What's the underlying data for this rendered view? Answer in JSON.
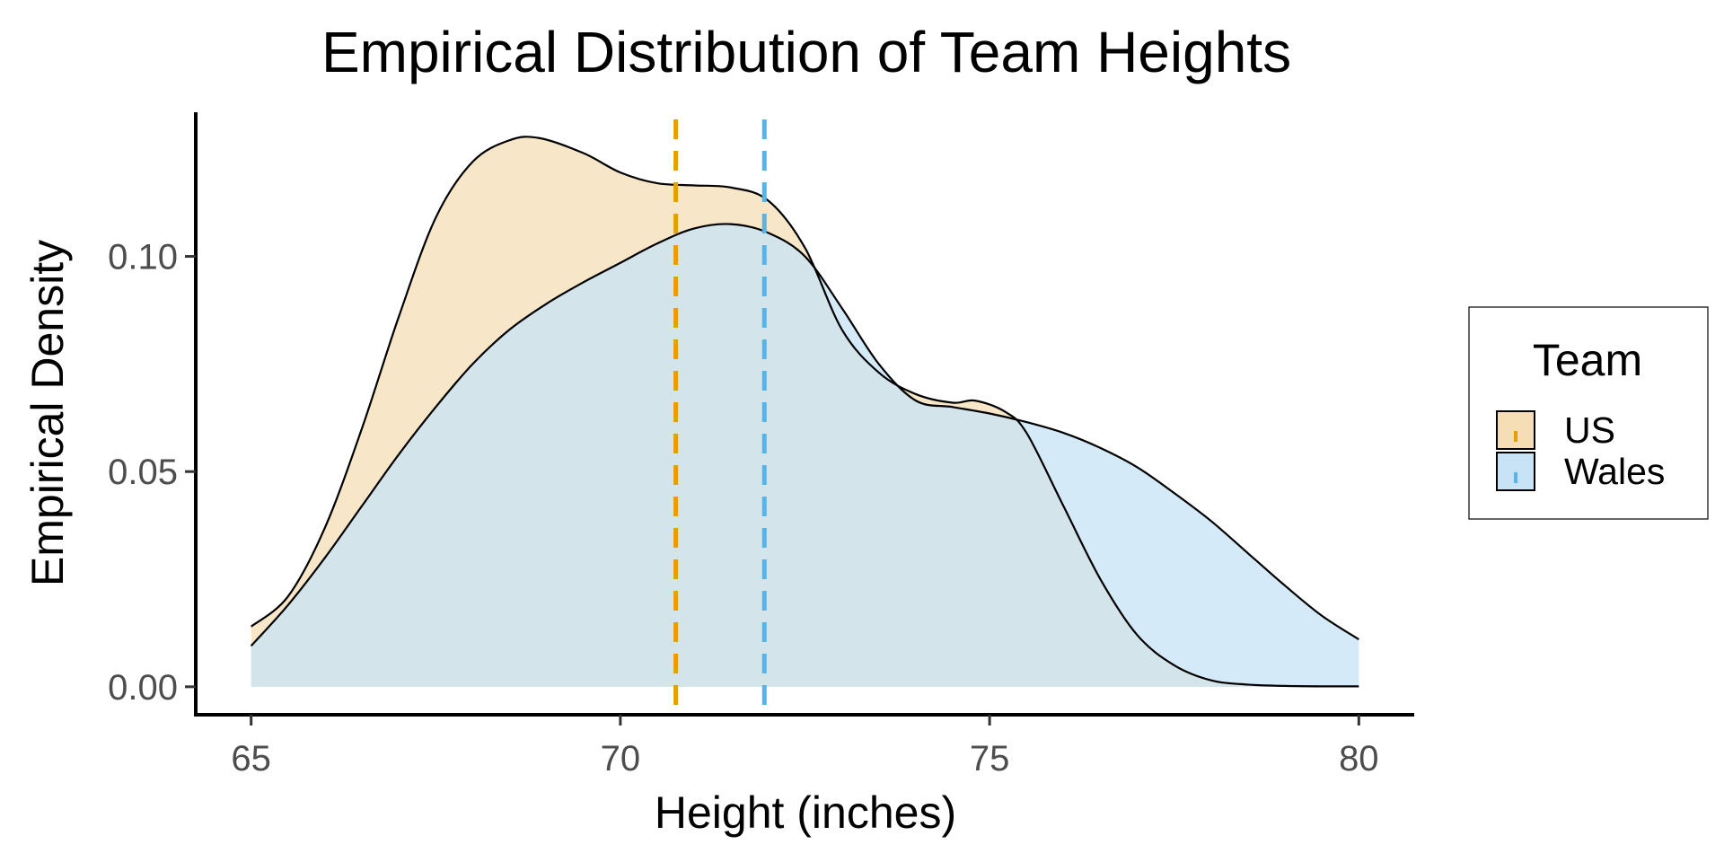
{
  "chart_data": {
    "type": "area",
    "title": "Empirical Distribution of Team Heights",
    "xlabel": "Height (inches)",
    "ylabel": "Empirical Density",
    "xlim": [
      64.25,
      80.75
    ],
    "ylim": [
      -0.0065,
      0.1335
    ],
    "x_ticks": [
      65,
      70,
      75,
      80
    ],
    "x_tick_labels": [
      "65",
      "70",
      "75",
      "80"
    ],
    "y_ticks": [
      0.0,
      0.05,
      0.1
    ],
    "y_tick_labels": [
      "0.00",
      "0.05",
      "0.10"
    ],
    "grid": false,
    "legend": {
      "title": "Team",
      "position": "right"
    },
    "series": [
      {
        "name": "US",
        "color": "#E69F00",
        "fill": "#F5DDB5",
        "mean": 70.75,
        "x": [
          65,
          65.5,
          66,
          66.5,
          67,
          67.5,
          68,
          68.5,
          68.9,
          69.5,
          70,
          70.5,
          71,
          71.5,
          72,
          72.5,
          73,
          73.5,
          74,
          74.5,
          74.8,
          75.2,
          75.5,
          76,
          76.5,
          77,
          77.5,
          78,
          78.5,
          79,
          79.5,
          80
        ],
        "y": [
          0.014,
          0.021,
          0.037,
          0.06,
          0.086,
          0.109,
          0.122,
          0.127,
          0.1275,
          0.124,
          0.1195,
          0.117,
          0.1165,
          0.116,
          0.113,
          0.102,
          0.083,
          0.073,
          0.068,
          0.066,
          0.0665,
          0.064,
          0.059,
          0.042,
          0.025,
          0.012,
          0.005,
          0.0015,
          0.0005,
          0.0002,
          0.0001,
          0.0001
        ]
      },
      {
        "name": "Wales",
        "color": "#56B4E9",
        "fill": "#C7E3F5",
        "mean": 71.95,
        "x": [
          65,
          65.5,
          66,
          66.5,
          67,
          67.5,
          68,
          68.5,
          69,
          69.5,
          70,
          70.5,
          71,
          71.5,
          72,
          72.5,
          73,
          73.5,
          74,
          74.5,
          75,
          75.5,
          76,
          76.5,
          77,
          77.5,
          78,
          78.5,
          79,
          79.5,
          80
        ],
        "y": [
          0.0095,
          0.019,
          0.03,
          0.042,
          0.054,
          0.065,
          0.075,
          0.083,
          0.089,
          0.094,
          0.0985,
          0.103,
          0.1065,
          0.1075,
          0.1055,
          0.1,
          0.088,
          0.075,
          0.0665,
          0.065,
          0.0635,
          0.0615,
          0.059,
          0.0555,
          0.051,
          0.045,
          0.0385,
          0.031,
          0.0235,
          0.0165,
          0.011
        ]
      }
    ]
  }
}
